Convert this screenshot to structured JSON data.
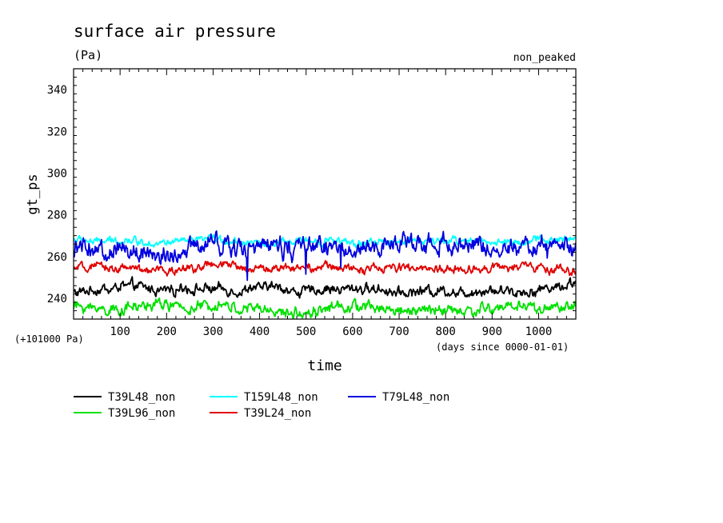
{
  "chart_data": {
    "type": "line",
    "title": "surface air pressure",
    "units": "(Pa)",
    "subtitle_right": "non_peaked",
    "ylabel": "gt_ps",
    "xlabel": "time",
    "x_unit_note": "(days since 0000-01-01)",
    "y_offset_note": "(+101000 Pa)",
    "xlim": [
      0,
      1080
    ],
    "ylim": [
      230,
      350
    ],
    "xticks": [
      100,
      200,
      300,
      400,
      500,
      600,
      700,
      800,
      900,
      1000
    ],
    "yticks": [
      240,
      260,
      280,
      300,
      320,
      340
    ],
    "x_minor_step": 20,
    "y_minor_step": 4,
    "series": [
      {
        "name": "T39L48_non",
        "color": "#000000",
        "mean": 244,
        "amp": 2.2,
        "x": [
          0,
          60,
          120,
          180,
          240,
          300,
          360,
          420,
          480,
          540,
          600,
          660,
          720,
          780,
          840,
          900,
          960,
          1020,
          1080
        ],
        "values": [
          243,
          244,
          246,
          244,
          245,
          244,
          243,
          246,
          243,
          244,
          245,
          244,
          243,
          244,
          243,
          244,
          243,
          245,
          247
        ]
      },
      {
        "name": "T39L96_non",
        "color": "#00e000",
        "mean": 235,
        "amp": 2.4,
        "x": [
          0,
          60,
          120,
          180,
          240,
          300,
          360,
          420,
          480,
          540,
          600,
          660,
          720,
          780,
          840,
          900,
          960,
          1020,
          1080
        ],
        "values": [
          236,
          235,
          235,
          237,
          235,
          236,
          235,
          234,
          232,
          235,
          236,
          235,
          234,
          235,
          234,
          235,
          236,
          235,
          236
        ]
      },
      {
        "name": "T159L48_non",
        "color": "#00ffff",
        "mean": 267,
        "amp": 1.6,
        "x": [
          0,
          60,
          120,
          180,
          240,
          300,
          360,
          420,
          480,
          540,
          600,
          660,
          720,
          780,
          840,
          900,
          960,
          1020,
          1080
        ],
        "values": [
          268,
          267,
          268,
          266,
          267,
          268,
          267,
          266,
          267,
          268,
          266,
          267,
          268,
          267,
          268,
          267,
          267,
          268,
          269
        ]
      },
      {
        "name": "T39L24_non",
        "color": "#e00000",
        "mean": 254,
        "amp": 1.8,
        "x": [
          0,
          60,
          120,
          180,
          240,
          300,
          360,
          420,
          480,
          540,
          600,
          660,
          720,
          780,
          840,
          900,
          960,
          1020,
          1080
        ],
        "values": [
          254,
          255,
          254,
          253,
          254,
          256,
          255,
          254,
          255,
          255,
          254,
          254,
          255,
          254,
          254,
          255,
          255,
          254,
          253
        ]
      },
      {
        "name": "T79L48_non",
        "color": "#0000e0",
        "mean": 264,
        "amp": 4.0,
        "x": [
          0,
          60,
          120,
          180,
          240,
          300,
          360,
          420,
          480,
          540,
          600,
          660,
          720,
          780,
          840,
          900,
          960,
          1020,
          1080
        ],
        "values": [
          264,
          262,
          264,
          260,
          264,
          266,
          265,
          265,
          264,
          266,
          263,
          265,
          266,
          265,
          265,
          266,
          265,
          264,
          266
        ]
      }
    ],
    "legend": [
      {
        "label": "T39L48_non",
        "color": "#000000"
      },
      {
        "label": "T39L96_non",
        "color": "#00e000"
      },
      {
        "label": "T159L48_non",
        "color": "#00ffff"
      },
      {
        "label": "T39L24_non",
        "color": "#e00000"
      },
      {
        "label": "T79L48_non",
        "color": "#0000e0"
      }
    ]
  }
}
